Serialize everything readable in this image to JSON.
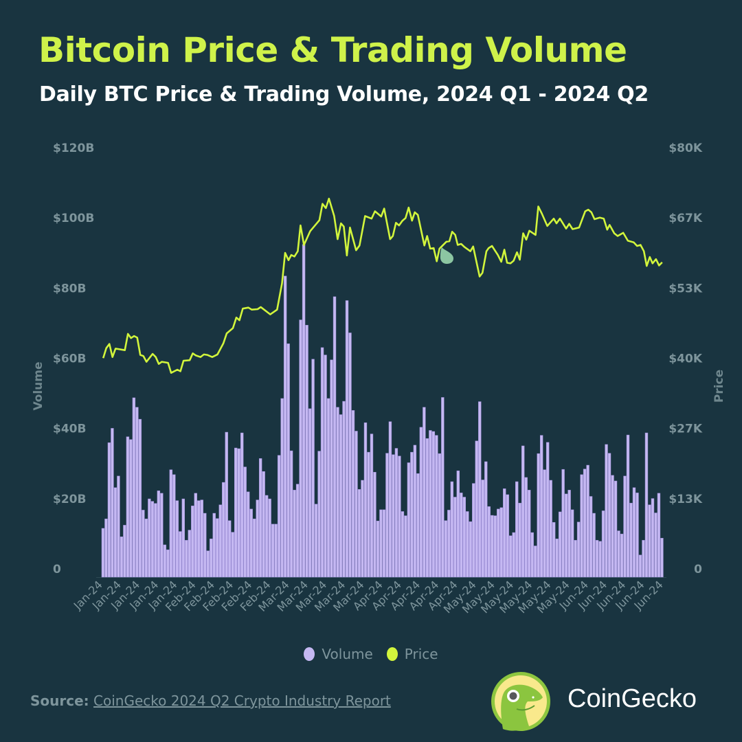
{
  "header": {
    "title": "Bitcoin Price & Trading Volume",
    "subtitle": "Daily BTC Price & Trading Volume, 2024 Q1 - 2024 Q2"
  },
  "colors": {
    "background": "#193440",
    "title": "#cff24a",
    "volume": "#c5b8f2",
    "volume_edge": "#9c8cd8",
    "price": "#d2f53c",
    "axis_text": "#7e959c"
  },
  "chart_data": {
    "type": "bar+line",
    "title": "Bitcoin Price & Trading Volume",
    "subtitle": "Daily BTC Price & Trading Volume, 2024 Q1 - 2024 Q2",
    "y_left": {
      "label": "Volume",
      "range": [
        0,
        120
      ],
      "unit": "billion USD",
      "ticks": [
        "0",
        "$20B",
        "$40B",
        "$60B",
        "$80B",
        "$100B",
        "$120B"
      ]
    },
    "y_right": {
      "label": "Price",
      "range": [
        0,
        80000
      ],
      "unit": "USD",
      "ticks": [
        "0",
        "$13K",
        "$27K",
        "$40K",
        "$53K",
        "$67K",
        "$80K"
      ]
    },
    "x_ticks": [
      "Jan-24",
      "Jan-24",
      "Jan-24",
      "Jan-24",
      "Jan-24",
      "Feb-24",
      "Feb-24",
      "Feb-24",
      "Feb-24",
      "Feb-24",
      "Mar-24",
      "Mar-24",
      "Mar-24",
      "Mar-24",
      "Mar-24",
      "Apr-24",
      "Apr-24",
      "Apr-24",
      "Apr-24",
      "Apr-24",
      "May-24",
      "May-24",
      "May-24",
      "May-24",
      "May-24",
      "May-24",
      "Jun-24",
      "Jun-24",
      "Jun-24",
      "Jun-24",
      "Jun-24"
    ],
    "days": 182,
    "grid": false,
    "legend": {
      "placement": "bottom",
      "entries": [
        "Volume",
        "Price"
      ]
    },
    "volume_billion": [
      13.9,
      16.6,
      38.3,
      42.4,
      25.5,
      28.8,
      11.5,
      14.8,
      40.0,
      39.2,
      51.1,
      48.4,
      45.0,
      19.1,
      16.6,
      22.3,
      21.6,
      21.0,
      24.6,
      23.9,
      9.2,
      7.8,
      30.6,
      29.2,
      21.8,
      13.0,
      22.3,
      10.5,
      13.4,
      20.3,
      23.9,
      21.8,
      22.0,
      18.2,
      7.5,
      10.9,
      18.2,
      16.7,
      20.6,
      27.0,
      41.3,
      16.1,
      12.8,
      36.8,
      36.6,
      41.1,
      31.4,
      24.3,
      19.4,
      16.6,
      22.0,
      33.8,
      30.1,
      23.3,
      22.3,
      15.1,
      15.1,
      34.7,
      50.9,
      85.8,
      66.5,
      36.0,
      24.8,
      26.5,
      73.3,
      94.8,
      71.8,
      48.0,
      62.1,
      20.8,
      35.9,
      65.4,
      63.3,
      50.9,
      61.9,
      79.9,
      48.4,
      46.3,
      50.1,
      78.8,
      69.6,
      47.5,
      41.6,
      25.0,
      27.6,
      44.0,
      35.6,
      40.8,
      29.9,
      16.0,
      19.2,
      19.2,
      35.3,
      44.3,
      34.9,
      36.7,
      34.5,
      18.7,
      17.5,
      32.6,
      35.6,
      37.6,
      29.5,
      42.7,
      48.4,
      39.5,
      41.8,
      41.5,
      40.4,
      35.2,
      51.2,
      16.1,
      19.1,
      27.2,
      22.8,
      30.3,
      24.0,
      22.8,
      18.7,
      15.8,
      26.7,
      38.8,
      50.0,
      27.7,
      32.9,
      20.1,
      17.6,
      17.5,
      19.4,
      19.8,
      25.2,
      23.5,
      11.8,
      12.7,
      27.2,
      21.1,
      37.4,
      28.4,
      24.8,
      12.7,
      8.9,
      35.2,
      40.4,
      30.6,
      38.4,
      27.6,
      15.6,
      10.9,
      18.6,
      30.7,
      23.7,
      24.8,
      19.2,
      10.5,
      15.7,
      29.2,
      30.8,
      31.9,
      23.0,
      18.2,
      10.5,
      10.2,
      18.9,
      37.8,
      35.3,
      29.0,
      27.4,
      13.2,
      12.3,
      28.8,
      40.5,
      21.1,
      25.5,
      24.0,
      6.3,
      10.5,
      41.1,
      20.6,
      22.4,
      18.3,
      23.9,
      11.1
    ],
    "price_day": [
      0,
      1,
      2,
      3,
      4,
      7,
      8,
      9,
      10,
      11,
      12,
      13,
      14,
      16,
      17,
      18,
      19,
      21,
      22,
      24,
      25,
      26,
      28,
      29,
      30,
      31.5,
      32.6,
      33.7,
      35.3,
      37,
      38.9,
      40,
      42,
      43.1,
      44.1,
      45.2,
      47,
      48.1,
      50,
      51,
      54.1,
      56.3,
      57.9,
      58.9,
      60,
      60.9,
      61.9,
      63,
      63.9,
      65,
      67,
      69.3,
      70,
      71,
      72.1,
      73.1,
      74.8,
      75.9,
      77,
      77.9,
      78.9,
      79.9,
      81.9,
      83,
      84.8,
      86.9,
      88,
      90,
      91,
      92.9,
      93.8,
      94.8,
      95.8,
      96.9,
      97.9,
      98.9,
      100,
      100.9,
      101.9,
      104,
      104.9,
      105.9,
      107,
      108,
      108.9,
      111.1,
      112.1,
      113,
      114,
      114.8,
      115.9,
      117,
      118.9,
      119.8,
      121.9,
      122.8,
      124.1,
      124.8,
      125.9,
      127.8,
      128.9,
      129.9,
      130.8,
      131.9,
      132.9,
      134,
      134.9,
      136,
      137,
      138,
      140,
      140.9,
      142,
      143.8,
      145.9,
      146.8,
      147.9,
      149.9,
      150.9,
      152,
      154.1,
      156.1,
      157.1,
      158.1,
      159.1,
      160.8,
      162.1,
      163.2,
      164,
      165.5,
      166.6,
      168.4,
      169.9,
      171.8,
      172.9,
      174,
      175.1,
      176,
      177,
      177.9,
      179,
      180,
      181
    ],
    "price_usd": [
      41600,
      43500,
      44300,
      41800,
      43400,
      43100,
      46200,
      45400,
      45800,
      45500,
      42200,
      42000,
      40900,
      42400,
      41800,
      40500,
      40900,
      40700,
      38800,
      39400,
      39100,
      41100,
      41200,
      42500,
      42100,
      41800,
      42300,
      42200,
      41800,
      42300,
      44400,
      46300,
      47300,
      49300,
      48800,
      51000,
      51200,
      50800,
      50900,
      51300,
      49900,
      50800,
      55800,
      61600,
      60200,
      61200,
      60900,
      61900,
      66800,
      63100,
      65700,
      67300,
      67800,
      70900,
      70100,
      71900,
      68600,
      64200,
      67200,
      66600,
      61100,
      66400,
      62100,
      63000,
      68600,
      68100,
      69500,
      68500,
      70000,
      64200,
      64800,
      67300,
      66800,
      67700,
      68200,
      70200,
      67700,
      69300,
      68800,
      63000,
      64800,
      62400,
      62500,
      60000,
      62400,
      63700,
      63800,
      65600,
      65000,
      63100,
      63300,
      62700,
      61900,
      62800,
      57100,
      57800,
      61900,
      62500,
      62900,
      61200,
      59900,
      62200,
      59700,
      59600,
      60100,
      61700,
      60300,
      65300,
      64100,
      65800,
      65000,
      70400,
      69100,
      66700,
      68100,
      67200,
      68100,
      66200,
      67100,
      66100,
      66400,
      69500,
      69800,
      69300,
      68000,
      68300,
      68100,
      66000,
      66900,
      65300,
      64800,
      65400,
      63900,
      63600,
      62900,
      63100,
      61900,
      59100,
      60800,
      59600,
      60400,
      59200,
      59800
    ]
  },
  "footer": {
    "source_label": "Source:",
    "source_link": "CoinGecko 2024 Q2 Crypto Industry Report",
    "brand": "CoinGecko"
  }
}
